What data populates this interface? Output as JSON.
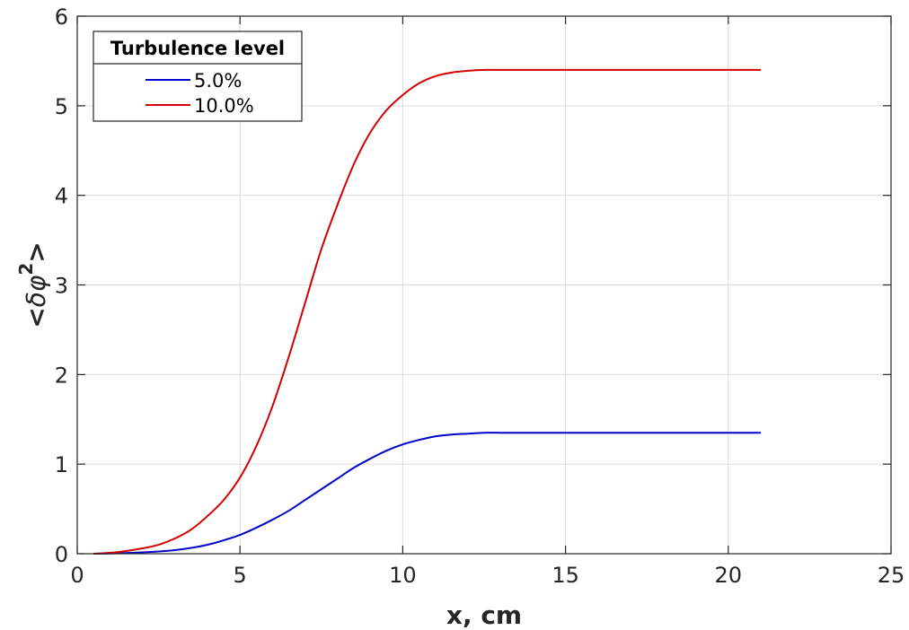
{
  "chart_data": {
    "type": "line",
    "xlabel": "x, cm",
    "ylabel": "<δφ²>",
    "ylabel_parts": {
      "prefix": "<",
      "symbol": "δφ",
      "superscript": "2",
      "suffix": ">"
    },
    "xlim": [
      0,
      25
    ],
    "ylim": [
      0,
      6
    ],
    "xticks": [
      "0",
      "5",
      "10",
      "15",
      "20",
      "25"
    ],
    "yticks": [
      "0",
      "1",
      "2",
      "3",
      "4",
      "5",
      "6"
    ],
    "grid": true,
    "legend": {
      "title": "Turbulence level",
      "placement": "top-left"
    },
    "series": [
      {
        "name": "5.0%",
        "color": "#0000c8",
        "x": [
          0.5,
          1,
          1.5,
          2,
          2.5,
          3,
          3.5,
          4,
          4.5,
          5,
          5.5,
          6,
          6.5,
          7,
          7.5,
          8,
          8.5,
          9,
          9.5,
          10,
          10.5,
          11,
          11.5,
          12,
          12.5,
          13,
          14,
          15,
          16,
          17,
          18,
          19,
          20,
          21
        ],
        "y": [
          0.0,
          0.003,
          0.008,
          0.015,
          0.025,
          0.04,
          0.065,
          0.1,
          0.15,
          0.21,
          0.29,
          0.38,
          0.48,
          0.6,
          0.72,
          0.84,
          0.96,
          1.06,
          1.15,
          1.22,
          1.27,
          1.31,
          1.33,
          1.34,
          1.35,
          1.35,
          1.35,
          1.35,
          1.35,
          1.35,
          1.35,
          1.35,
          1.35,
          1.35
        ]
      },
      {
        "name": "10.0%",
        "color": "#d40000",
        "x": [
          0.5,
          1,
          1.5,
          2,
          2.5,
          3,
          3.5,
          4,
          4.5,
          5,
          5.5,
          6,
          6.5,
          7,
          7.5,
          8,
          8.5,
          9,
          9.5,
          10,
          10.5,
          11,
          11.5,
          12,
          12.5,
          13,
          13.5,
          14,
          15,
          16,
          17,
          18,
          19,
          20,
          21
        ],
        "y": [
          0.0,
          0.01,
          0.03,
          0.06,
          0.1,
          0.17,
          0.27,
          0.42,
          0.6,
          0.85,
          1.2,
          1.65,
          2.2,
          2.8,
          3.4,
          3.9,
          4.35,
          4.7,
          4.95,
          5.12,
          5.25,
          5.33,
          5.37,
          5.39,
          5.4,
          5.4,
          5.4,
          5.4,
          5.4,
          5.4,
          5.4,
          5.4,
          5.4,
          5.4,
          5.4
        ]
      }
    ]
  }
}
